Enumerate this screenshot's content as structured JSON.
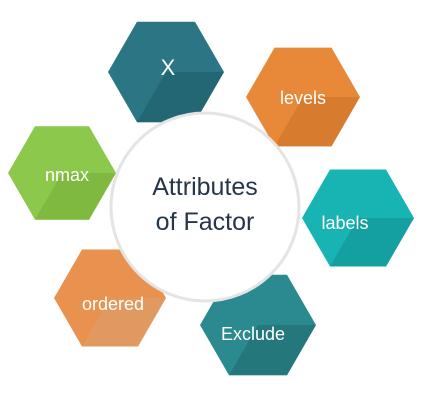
{
  "center": {
    "line1": "Attributes",
    "line2": "of Factor"
  },
  "attributes": [
    {
      "id": "x",
      "label": "X",
      "color": "#2b7585",
      "shade": "#1e5966"
    },
    {
      "id": "levels",
      "label": "levels",
      "color": "#e8893a",
      "shade": "#c86f27"
    },
    {
      "id": "labels",
      "label": "labels",
      "color": "#17b4b3",
      "shade": "#12908f"
    },
    {
      "id": "exclude",
      "label": "Exclude",
      "color": "#2b8a8f",
      "shade": "#1f6a6e"
    },
    {
      "id": "ordered",
      "label": "ordered",
      "color": "#e9924f",
      "shade": "#d9a070"
    },
    {
      "id": "nmax",
      "label": "nmax",
      "color": "#8cc84b",
      "shade": "#76ad38"
    }
  ]
}
